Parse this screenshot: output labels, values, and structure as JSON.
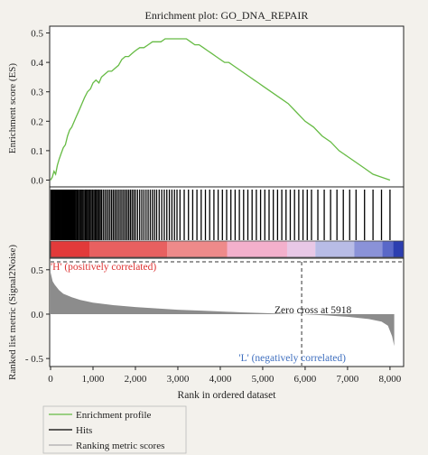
{
  "chart_data": {
    "type": "line",
    "title": "Enrichment plot: GO_DNA_REPAIR",
    "xlabel": "Rank in ordered dataset",
    "xlim": [
      0,
      8300
    ],
    "x_ticks": [
      0,
      1000,
      2000,
      3000,
      4000,
      5000,
      6000,
      7000,
      8000
    ],
    "x_tick_labels": [
      "0",
      "1,000",
      "2,000",
      "3,000",
      "4,000",
      "5,000",
      "6,000",
      "7,000",
      "8,000"
    ],
    "es_panel": {
      "ylabel": "Enrichment score (ES)",
      "ylim": [
        -0.02,
        0.52
      ],
      "y_ticks": [
        0.0,
        0.1,
        0.2,
        0.3,
        0.4,
        0.5
      ],
      "y_tick_labels": [
        "0.0",
        "0.1",
        "0.2",
        "0.3",
        "0.4",
        "0.5"
      ],
      "line_color": "#66bb44",
      "x": [
        0,
        40,
        80,
        120,
        160,
        200,
        250,
        300,
        350,
        400,
        450,
        500,
        560,
        620,
        680,
        740,
        800,
        870,
        940,
        1000,
        1070,
        1140,
        1200,
        1280,
        1360,
        1440,
        1520,
        1600,
        1680,
        1760,
        1840,
        1920,
        2000,
        2100,
        2200,
        2300,
        2400,
        2500,
        2600,
        2700,
        2800,
        2900,
        3000,
        3100,
        3200,
        3300,
        3400,
        3500,
        3600,
        3700,
        3800,
        3900,
        4000,
        4100,
        4200,
        4300,
        4400,
        4500,
        4600,
        4700,
        4800,
        4900,
        5000,
        5200,
        5400,
        5600,
        5800,
        6000,
        6200,
        6400,
        6600,
        6800,
        7000,
        7200,
        7400,
        7600,
        7800,
        8000
      ],
      "y": [
        0.0,
        0.01,
        0.03,
        0.02,
        0.05,
        0.07,
        0.09,
        0.11,
        0.12,
        0.15,
        0.17,
        0.18,
        0.2,
        0.22,
        0.24,
        0.26,
        0.28,
        0.3,
        0.31,
        0.33,
        0.34,
        0.33,
        0.35,
        0.36,
        0.37,
        0.37,
        0.38,
        0.39,
        0.41,
        0.42,
        0.42,
        0.43,
        0.44,
        0.45,
        0.45,
        0.46,
        0.47,
        0.47,
        0.47,
        0.48,
        0.48,
        0.48,
        0.48,
        0.48,
        0.48,
        0.47,
        0.46,
        0.46,
        0.45,
        0.44,
        0.43,
        0.42,
        0.41,
        0.4,
        0.4,
        0.39,
        0.38,
        0.37,
        0.36,
        0.35,
        0.34,
        0.33,
        0.32,
        0.3,
        0.28,
        0.26,
        0.23,
        0.2,
        0.18,
        0.15,
        0.13,
        0.1,
        0.08,
        0.06,
        0.04,
        0.02,
        0.01,
        0.0
      ]
    },
    "hits_panel": {
      "series_name": "Hits",
      "hit_ranks": [
        10,
        25,
        45,
        60,
        80,
        100,
        120,
        135,
        150,
        170,
        190,
        205,
        225,
        240,
        260,
        280,
        300,
        320,
        340,
        355,
        375,
        395,
        415,
        430,
        450,
        470,
        490,
        510,
        530,
        550,
        575,
        600,
        625,
        650,
        680,
        705,
        730,
        760,
        790,
        820,
        845,
        870,
        900,
        930,
        960,
        990,
        1020,
        1050,
        1080,
        1110,
        1140,
        1170,
        1200,
        1240,
        1280,
        1320,
        1360,
        1400,
        1440,
        1480,
        1520,
        1560,
        1600,
        1640,
        1680,
        1720,
        1760,
        1800,
        1840,
        1880,
        1920,
        1960,
        2000,
        2050,
        2100,
        2150,
        2200,
        2250,
        2300,
        2350,
        2400,
        2450,
        2500,
        2560,
        2620,
        2680,
        2740,
        2800,
        2860,
        2920,
        2980,
        3050,
        3150,
        3250,
        3350,
        3450,
        3550,
        3650,
        3750,
        3850,
        3950,
        4050,
        4150,
        4250,
        4350,
        4450,
        4550,
        4650,
        4750,
        4850,
        4950,
        5050,
        5150,
        5250,
        5350,
        5450,
        5550,
        5650,
        5750,
        5850,
        5950,
        6050,
        6150,
        6300,
        6450,
        6600,
        6750,
        6900,
        7050,
        7200,
        7400,
        7600,
        7800,
        8000
      ],
      "gradient_colors": [
        "#e23a3a",
        "#e86060",
        "#ee8a8a",
        "#f3b0cc",
        "#e8c8e6",
        "#b8bce6",
        "#8a92d8",
        "#5a68c8",
        "#2c3eb0"
      ]
    },
    "metric_panel": {
      "ylabel": "Ranked list metric (Signal2Noise)",
      "ylim": [
        -0.58,
        0.62
      ],
      "y_ticks": [
        -0.5,
        0.0,
        0.5
      ],
      "y_tick_labels": [
        "- 0.5",
        "0.0",
        "0.5"
      ],
      "fill_color": "#8c8c8c",
      "x": [
        0,
        50,
        100,
        200,
        300,
        500,
        700,
        1000,
        1500,
        2000,
        2500,
        3000,
        3500,
        4000,
        4500,
        5000,
        5500,
        5918,
        6500,
        7000,
        7500,
        7800,
        7950,
        8050,
        8100
      ],
      "y": [
        0.47,
        0.37,
        0.33,
        0.27,
        0.23,
        0.19,
        0.16,
        0.13,
        0.1,
        0.08,
        0.065,
        0.05,
        0.04,
        0.03,
        0.02,
        0.012,
        0.005,
        0.0,
        -0.015,
        -0.03,
        -0.055,
        -0.085,
        -0.13,
        -0.25,
        -0.36
      ],
      "zero_cross_label": "Zero cross at 5918",
      "zero_cross_x": 5918,
      "pos_label": "'H' (positively correlated)",
      "neg_label": "'L' (negatively correlated)",
      "pos_color": "#dd3333",
      "neg_color": "#3f6fbf"
    },
    "legend": {
      "placement": "bottom-left",
      "items": [
        {
          "label": "Enrichment profile",
          "color": "#66bb44"
        },
        {
          "label": "Hits",
          "color": "#000000"
        },
        {
          "label": "Ranking metric scores",
          "color": "#aaaaaa"
        }
      ]
    }
  }
}
